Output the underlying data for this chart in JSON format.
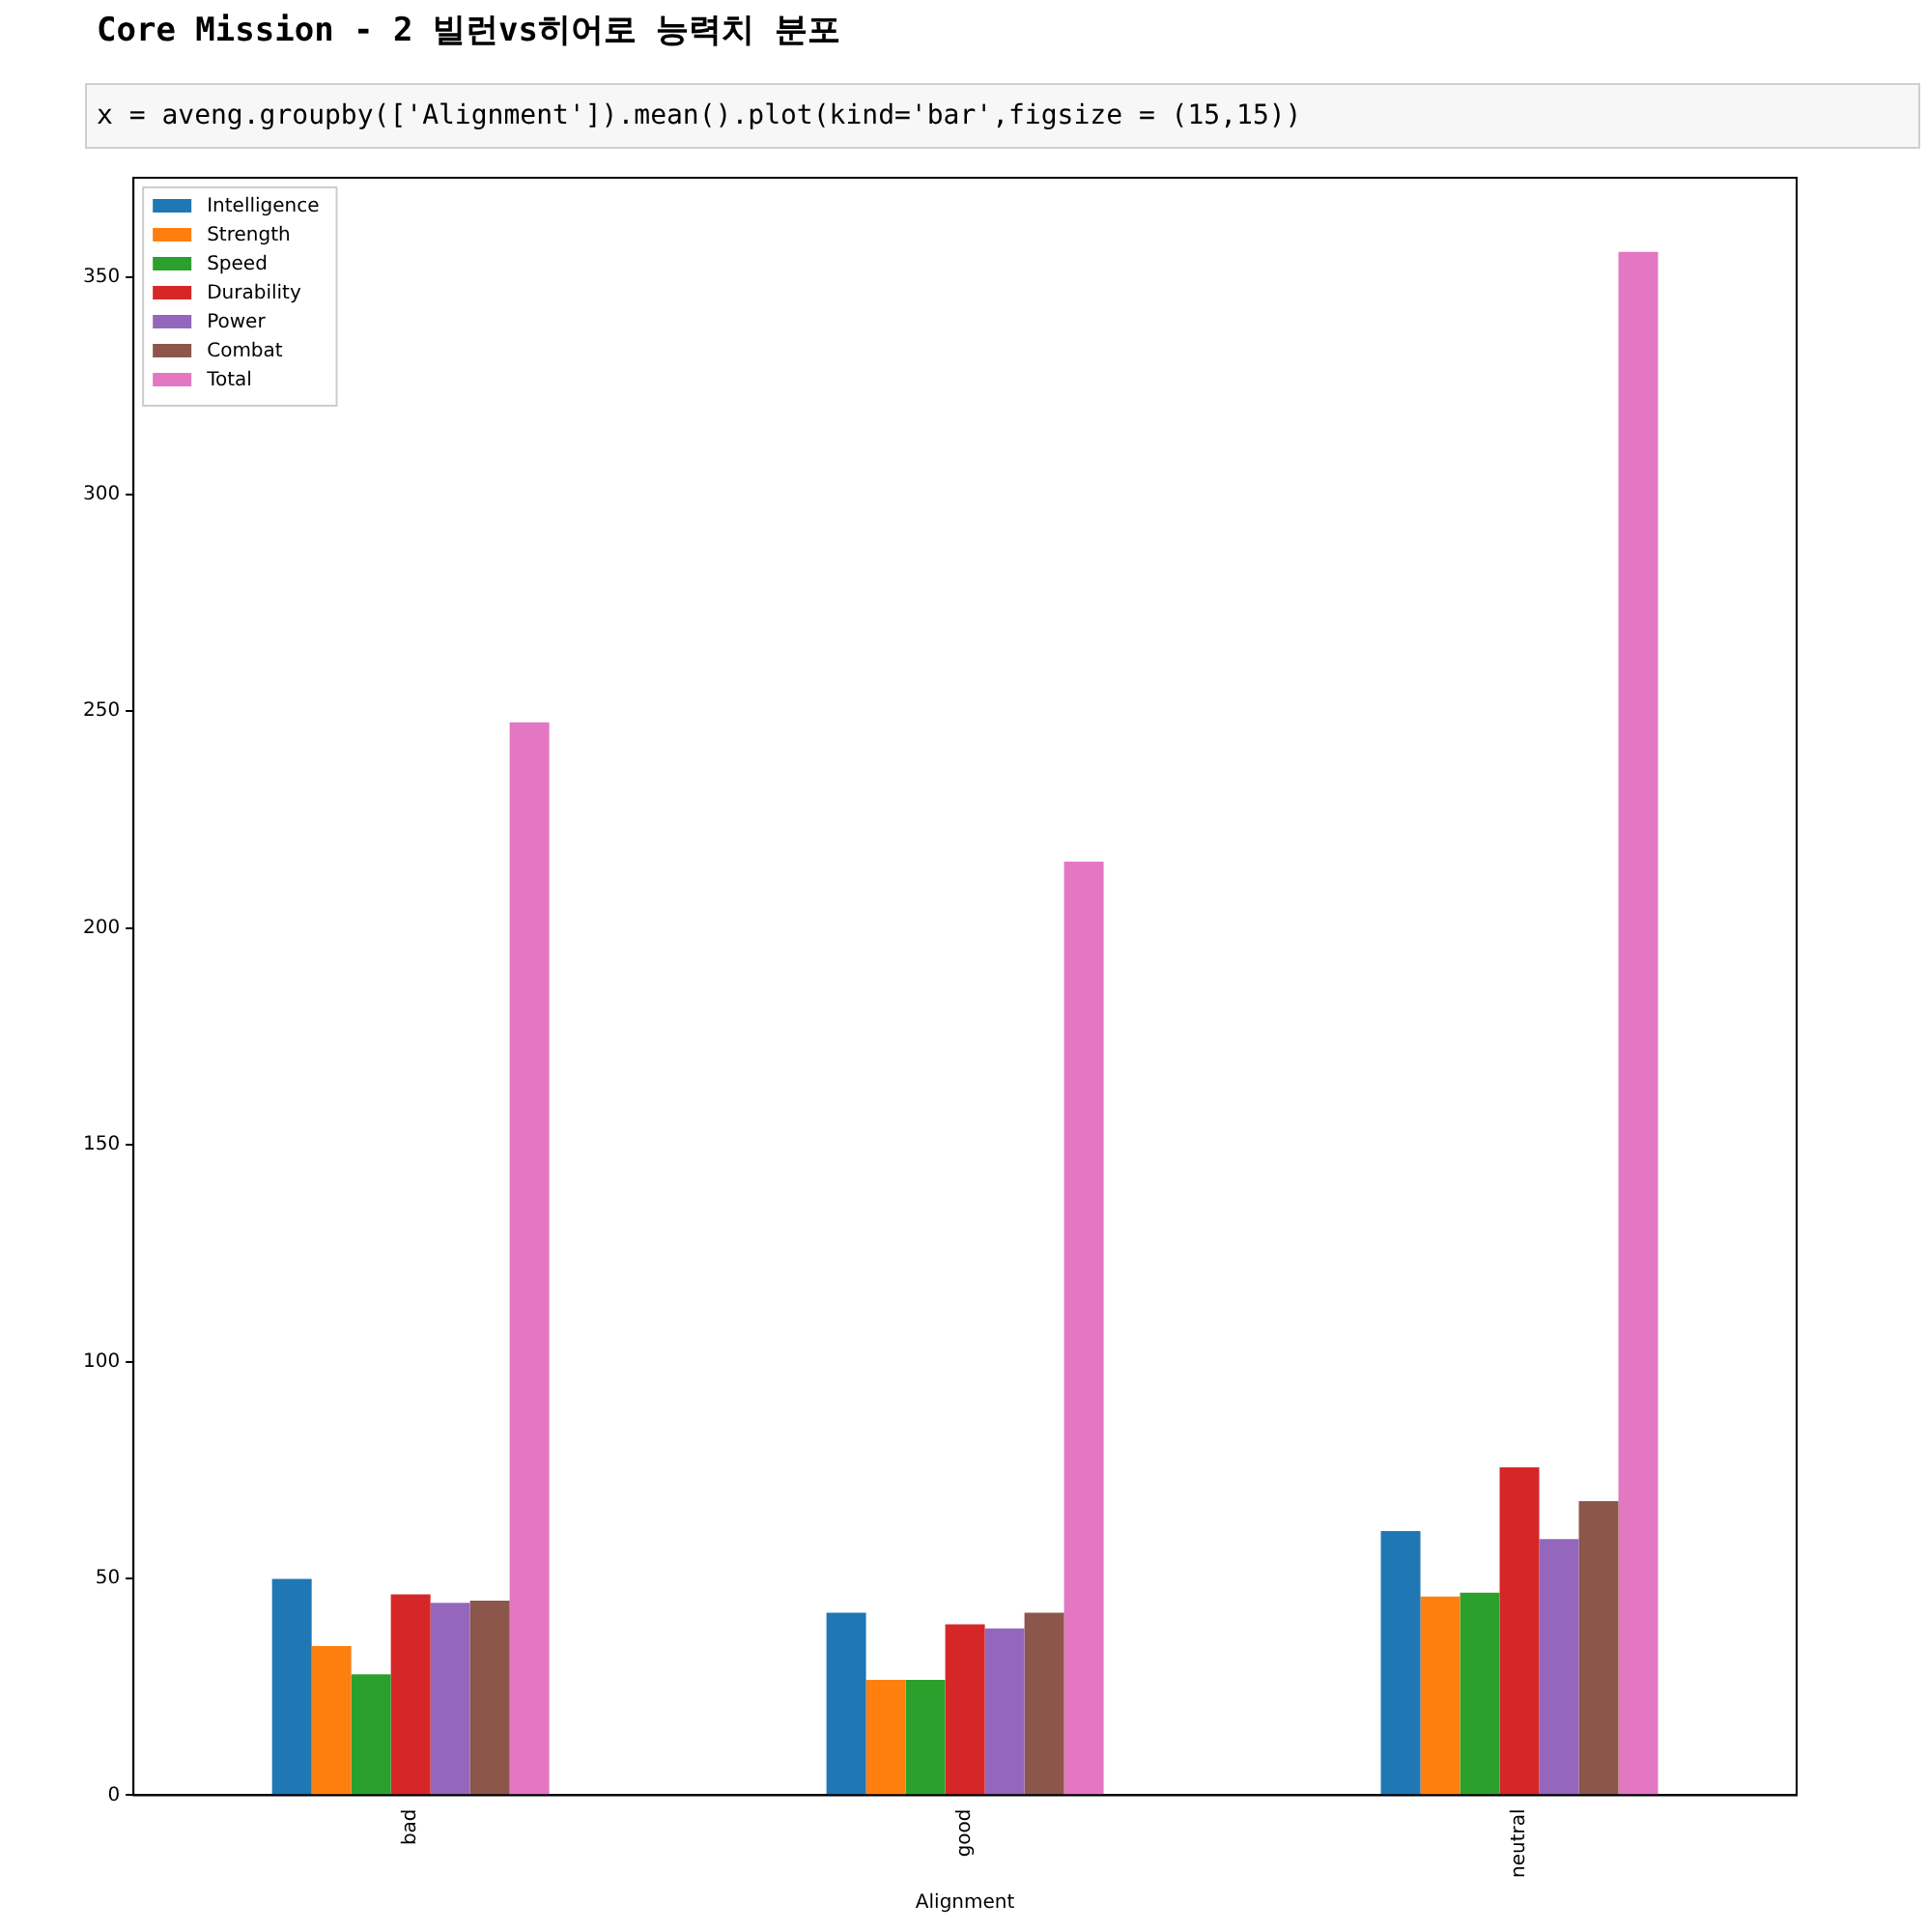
{
  "chart_data": {
    "type": "bar",
    "title": "Core Mission - 2 빌런vs히어로 능력치 분포",
    "annotations": [
      "x = aveng.groupby(['Alignment']).mean().plot(kind='bar',figsize = (15,15))"
    ],
    "xlabel": "Alignment",
    "categories": [
      "bad",
      "good",
      "neutral"
    ],
    "series": [
      {
        "name": "Intelligence",
        "color": "#1f77b4",
        "values": [
          49.9,
          42.1,
          60.9
        ]
      },
      {
        "name": "Strength",
        "color": "#ff7f0e",
        "values": [
          34.4,
          26.6,
          45.8
        ]
      },
      {
        "name": "Speed",
        "color": "#2ca02c",
        "values": [
          27.9,
          26.6,
          46.7
        ]
      },
      {
        "name": "Durability",
        "color": "#d62728",
        "values": [
          46.3,
          39.4,
          75.6
        ]
      },
      {
        "name": "Power",
        "color": "#9467bd",
        "values": [
          44.4,
          38.5,
          59.1
        ]
      },
      {
        "name": "Combat",
        "color": "#8c564b",
        "values": [
          44.9,
          42.1,
          67.8
        ]
      },
      {
        "name": "Total",
        "color": "#e377c2",
        "values": [
          247.4,
          215.3,
          355.9
        ]
      }
    ],
    "ylim": [
      0,
      373
    ],
    "yticks": [
      0,
      50,
      100,
      150,
      200,
      250,
      300,
      350
    ],
    "grid": false,
    "legend": "top left"
  }
}
